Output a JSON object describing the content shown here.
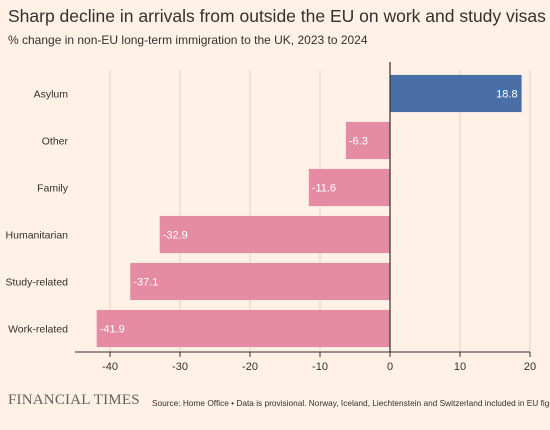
{
  "header": {
    "title": "Sharp decline in arrivals from outside the EU on work and study visas",
    "subtitle": "% change in non-EU long-term immigration to the UK, 2023 to 2024"
  },
  "footer": {
    "logo": "FINANCIAL TIMES",
    "source": "Source: Home Office • Data is provisional. Norway, Iceland, Liechtenstein and Switzerland included in EU figures"
  },
  "colors": {
    "positive": "#4a6fa6",
    "negative": "#e58ba3",
    "background": "#fff1e5",
    "grid": "#e0d3c8",
    "axis": "#33302e"
  },
  "chart_data": {
    "type": "bar",
    "orientation": "horizontal",
    "categories": [
      "Asylum",
      "Other",
      "Family",
      "Humanitarian",
      "Study-related",
      "Work-related"
    ],
    "values": [
      18.8,
      -6.3,
      -11.6,
      -32.9,
      -37.1,
      -41.9
    ],
    "value_labels": [
      "18.8",
      "-6.3",
      "-11.6",
      "-32.9",
      "-37.1",
      "-41.9"
    ],
    "xlim": [
      -45,
      20
    ],
    "xticks": [
      -40,
      -30,
      -20,
      -10,
      0,
      10,
      20
    ],
    "xtick_labels": [
      "-40",
      "-30",
      "-20",
      "-10",
      "0",
      "10",
      "20"
    ],
    "grid": true
  }
}
